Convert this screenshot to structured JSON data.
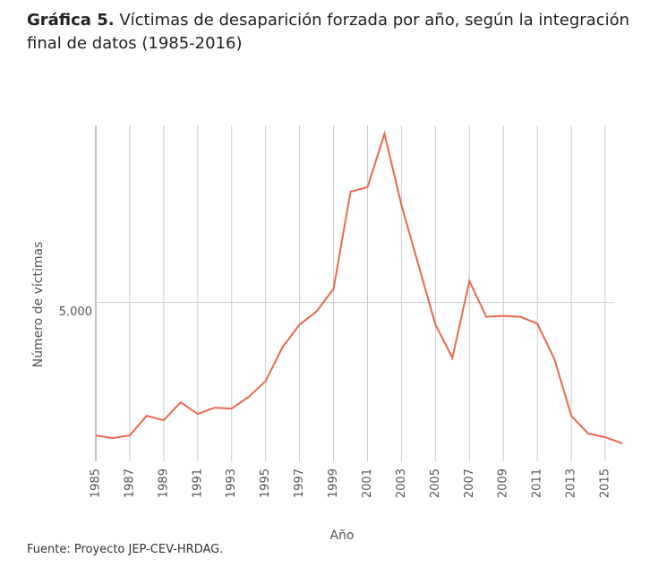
{
  "chart_data": {
    "type": "line",
    "title_label": "Gráfica 5.",
    "title": "Víctimas de desaparición forzada por año, según la integración final de datos (1985-2016)",
    "xlabel": "Año",
    "ylabel": "Número de víctimas",
    "source": "Fuente: Proyecto JEP-CEV-HRDAG.",
    "x": [
      1985,
      1986,
      1987,
      1988,
      1989,
      1990,
      1991,
      1992,
      1993,
      1994,
      1995,
      1996,
      1997,
      1998,
      1999,
      2000,
      2001,
      2002,
      2003,
      2004,
      2005,
      2006,
      2007,
      2008,
      2009,
      2010,
      2011,
      2012,
      2013,
      2014,
      2015,
      2016
    ],
    "series": [
      {
        "name": "Víctimas",
        "color": "#e8694a",
        "values": [
          565,
          476,
          565,
          1220,
          1070,
          1670,
          1280,
          1490,
          1460,
          1845,
          2380,
          3510,
          4260,
          4700,
          5450,
          8690,
          8840,
          10620,
          8240,
          6250,
          4260,
          3150,
          5710,
          4520,
          4550,
          4520,
          4290,
          3120,
          1220,
          625,
          505,
          300
        ]
      }
    ],
    "xlim": [
      1985,
      2016
    ],
    "xticks": [
      1985,
      1987,
      1989,
      1991,
      1993,
      1995,
      1997,
      1999,
      2001,
      2003,
      2005,
      2007,
      2009,
      2011,
      2013,
      2015
    ],
    "ylim": [
      0,
      10900
    ],
    "yticks": [
      {
        "value": 5000,
        "label": "5.000"
      }
    ],
    "grid": true
  }
}
